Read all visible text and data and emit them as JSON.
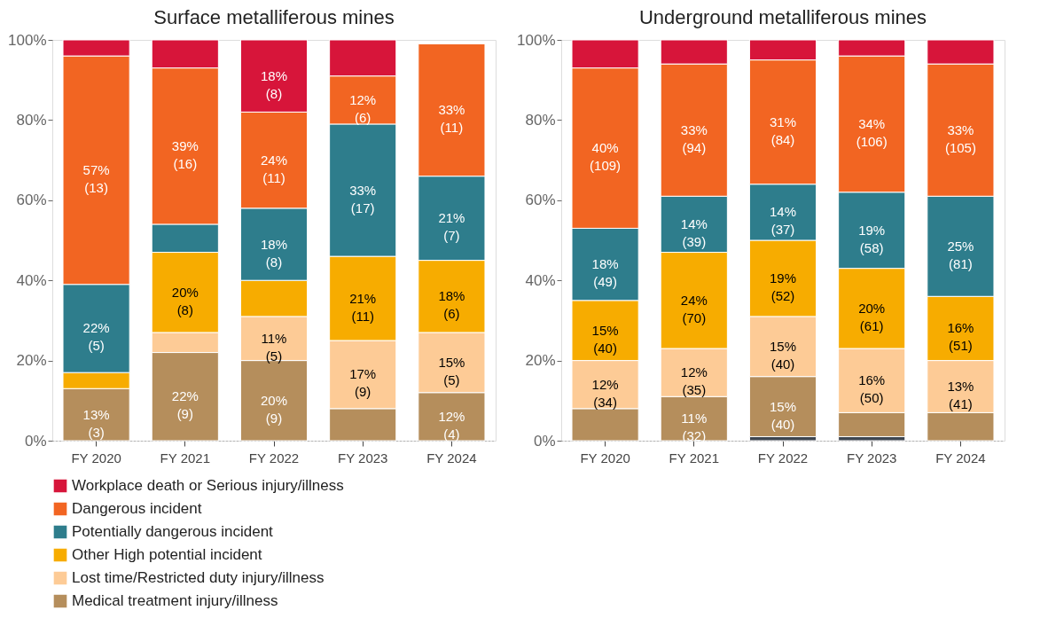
{
  "chart_data": [
    {
      "type": "bar",
      "stacked": true,
      "title": "Surface metalliferous mines",
      "categories": [
        "FY 2020",
        "FY 2021",
        "FY 2022",
        "FY 2023",
        "FY 2024"
      ],
      "ylim": [
        0,
        100
      ],
      "yticks": [
        {
          "value": 0,
          "label": "0%"
        },
        {
          "value": 20,
          "label": "20%"
        },
        {
          "value": 40,
          "label": "40%"
        },
        {
          "value": 60,
          "label": "60%"
        },
        {
          "value": 80,
          "label": "80%"
        },
        {
          "value": 100,
          "label": "100%"
        }
      ],
      "grid": false,
      "legend": "bottom",
      "series": [
        {
          "name": "Medical treatment injury/illness",
          "color": "#b58e5c",
          "values": [
            13,
            22,
            20,
            8,
            12
          ],
          "value_labels": [
            "13%\n(3)",
            "22%\n(9)",
            "20%\n(9)",
            null,
            "12%\n(4)"
          ]
        },
        {
          "name": "Lost time/Restricted duty injury/illness",
          "color": "#fdcb96",
          "values": [
            null,
            5,
            11,
            17,
            15
          ],
          "value_labels": [
            null,
            null,
            "11%\n(5)",
            "17%\n(9)",
            "15%\n(5)"
          ]
        },
        {
          "name": "Other High potential incident",
          "color": "#f7ac00",
          "values": [
            4,
            20,
            9,
            21,
            18
          ],
          "value_labels": [
            null,
            "20%\n(8)",
            null,
            "21%\n(11)",
            "18%\n(6)"
          ]
        },
        {
          "name": "Potentially dangerous incident",
          "color": "#2e7d8c",
          "values": [
            22,
            7,
            18,
            33,
            21
          ],
          "value_labels": [
            "22%\n(5)",
            null,
            "18%\n(8)",
            "33%\n(17)",
            "21%\n(7)"
          ]
        },
        {
          "name": "Dangerous incident",
          "color": "#f26522",
          "values": [
            57,
            39,
            24,
            12,
            33
          ],
          "value_labels": [
            "57%\n(13)",
            "39%\n(16)",
            "24%\n(11)",
            "12%\n(6)",
            "33%\n(11)"
          ]
        },
        {
          "name": "Workplace death or Serious injury/illness",
          "color": "#d7153a",
          "values": [
            4,
            7,
            18,
            9,
            null
          ],
          "value_labels": [
            null,
            null,
            "18%\n(8)",
            null,
            null
          ]
        }
      ]
    },
    {
      "type": "bar",
      "stacked": true,
      "title": "Underground metalliferous mines",
      "categories": [
        "FY 2020",
        "FY 2021",
        "FY 2022",
        "FY 2023",
        "FY 2024"
      ],
      "ylim": [
        0,
        100
      ],
      "yticks": [
        {
          "value": 0,
          "label": "0%"
        },
        {
          "value": 20,
          "label": "20%"
        },
        {
          "value": 40,
          "label": "40%"
        },
        {
          "value": 60,
          "label": "60%"
        },
        {
          "value": 80,
          "label": "80%"
        },
        {
          "value": 100,
          "label": "100%"
        }
      ],
      "grid": false,
      "legend": "bottom",
      "series": [
        {
          "color": "#3e4650",
          "values": [
            null,
            null,
            1,
            1,
            null
          ]
        },
        {
          "name": "Medical treatment injury/illness",
          "color": "#b58e5c",
          "values": [
            8,
            11,
            15,
            6,
            7
          ],
          "value_labels": [
            null,
            "11%\n(32)",
            "15%\n(40)",
            null,
            null
          ]
        },
        {
          "name": "Lost time/Restricted duty injury/illness",
          "color": "#fdcb96",
          "values": [
            12,
            12,
            15,
            16,
            13
          ],
          "value_labels": [
            "12%\n(34)",
            "12%\n(35)",
            "15%\n(40)",
            "16%\n(50)",
            "13%\n(41)"
          ]
        },
        {
          "name": "Other High potential incident",
          "color": "#f7ac00",
          "values": [
            15,
            24,
            19,
            20,
            16
          ],
          "value_labels": [
            "15%\n(40)",
            "24%\n(70)",
            "19%\n(52)",
            "20%\n(61)",
            "16%\n(51)"
          ]
        },
        {
          "name": "Potentially dangerous incident",
          "color": "#2e7d8c",
          "values": [
            18,
            14,
            14,
            19,
            25
          ],
          "value_labels": [
            "18%\n(49)",
            "14%\n(39)",
            "14%\n(37)",
            "19%\n(58)",
            "25%\n(81)"
          ]
        },
        {
          "name": "Dangerous incident",
          "color": "#f26522",
          "values": [
            40,
            33,
            31,
            34,
            33
          ],
          "value_labels": [
            "40%\n(109)",
            "33%\n(94)",
            "31%\n(84)",
            "34%\n(106)",
            "33%\n(105)"
          ]
        },
        {
          "name": "Workplace death or Serious injury/illness",
          "color": "#d7153a",
          "values": [
            7,
            6,
            5,
            4,
            6
          ],
          "value_labels": [
            null,
            null,
            null,
            null,
            null
          ]
        }
      ]
    }
  ]
}
